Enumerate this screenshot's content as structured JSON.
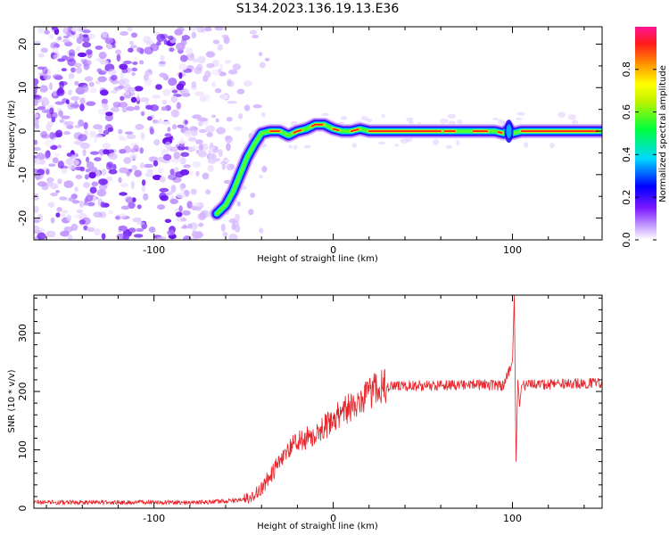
{
  "title": "S134.2023.136.19.13.E36",
  "colors": {
    "snr_line": "#e8242a",
    "frame": "#000000",
    "noise": "#9a4dff"
  },
  "chart_data": [
    {
      "type": "heatmap",
      "name": "spectrogram",
      "xlabel": "Height of straight line (km)",
      "ylabel": "Frequency (Hz)",
      "xlim": [
        -167,
        150
      ],
      "ylim": [
        -25,
        24
      ],
      "xticks": [
        {
          "value": -100,
          "label": "-100"
        },
        {
          "value": 0,
          "label": "0"
        },
        {
          "value": 100,
          "label": "100"
        }
      ],
      "yticks": [
        {
          "value": -20,
          "label": "-20"
        },
        {
          "value": -10,
          "label": "-10"
        },
        {
          "value": 0,
          "label": "0"
        },
        {
          "value": 10,
          "label": "10"
        },
        {
          "value": 20,
          "label": "20"
        }
      ],
      "noise_region_x": [
        -167,
        -50
      ],
      "trace": {
        "x": [
          -65,
          -60,
          -56,
          -52,
          -48,
          -44,
          -40,
          -35,
          -30,
          -25,
          -20,
          -15,
          -10,
          -5,
          0,
          5,
          10,
          15,
          20,
          40,
          60,
          70,
          80,
          90,
          95,
          98,
          100,
          105,
          120,
          150
        ],
        "y": [
          -19,
          -17,
          -14,
          -10,
          -6,
          -3,
          -0.5,
          0,
          0,
          -1,
          0,
          0.5,
          1.5,
          1.5,
          0.5,
          0,
          0,
          0.5,
          0,
          0,
          0,
          0,
          0,
          0,
          -0.5,
          0.5,
          -0.5,
          0,
          0,
          0
        ]
      },
      "colorbar": {
        "label": "Normalized spectral amplitude",
        "range": [
          0,
          1
        ],
        "ticks": [
          {
            "value": 0.0,
            "label": "0.0"
          },
          {
            "value": 0.2,
            "label": "0.2"
          },
          {
            "value": 0.4,
            "label": "0.4"
          },
          {
            "value": 0.6,
            "label": "0.6"
          },
          {
            "value": 0.8,
            "label": "0.8"
          }
        ]
      }
    },
    {
      "type": "line",
      "name": "snr",
      "xlabel": "Height of straight line (km)",
      "ylabel": "SNR (10 * v/v)",
      "xlim": [
        -167,
        150
      ],
      "ylim": [
        0,
        365
      ],
      "xticks": [
        {
          "value": -100,
          "label": "-100"
        },
        {
          "value": 0,
          "label": "0"
        },
        {
          "value": 100,
          "label": "100"
        }
      ],
      "yticks": [
        {
          "value": 0,
          "label": "0"
        },
        {
          "value": 100,
          "label": "100"
        },
        {
          "value": 200,
          "label": "200"
        },
        {
          "value": 300,
          "label": "300"
        }
      ],
      "series": [
        {
          "name": "SNR",
          "x": [
            -167,
            -140,
            -120,
            -100,
            -80,
            -60,
            -50,
            -45,
            -40,
            -35,
            -30,
            -25,
            -20,
            -15,
            -10,
            -5,
            0,
            5,
            10,
            15,
            20,
            25,
            30,
            40,
            60,
            80,
            95,
            100,
            101,
            102,
            103,
            104,
            105,
            110,
            120,
            150
          ],
          "y": [
            10,
            10,
            10,
            10,
            10,
            12,
            15,
            22,
            35,
            55,
            80,
            100,
            115,
            120,
            130,
            140,
            150,
            165,
            175,
            185,
            195,
            205,
            208,
            210,
            210,
            212,
            210,
            250,
            365,
            80,
            220,
            175,
            210,
            212,
            212,
            215
          ]
        }
      ]
    }
  ]
}
